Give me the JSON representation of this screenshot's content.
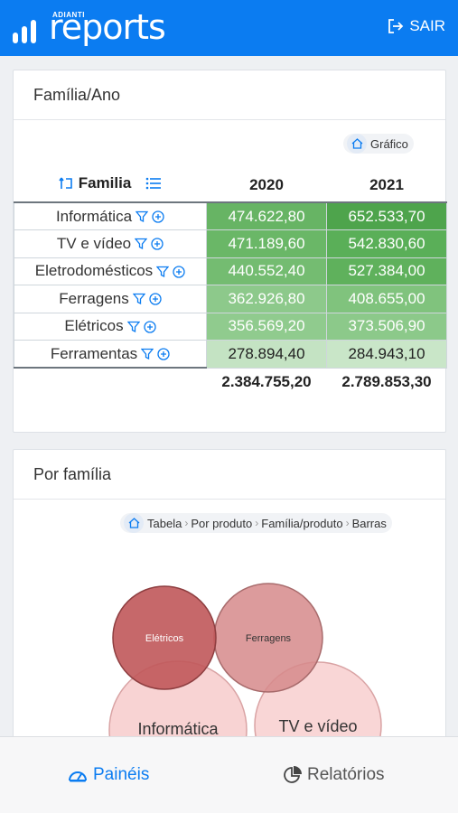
{
  "header": {
    "brand_small": "ADIANTI",
    "brand_big": "reports",
    "logout_label": "SAIR"
  },
  "card1": {
    "title": "Família/Ano",
    "breadcrumb": [
      "Gráfico"
    ],
    "row_header": "Familia",
    "columns": [
      "2020",
      "2021"
    ],
    "rows": [
      {
        "label": "Informática",
        "values": [
          "474.622,80",
          "652.533,70"
        ],
        "colors": [
          "#67b464",
          "#4ea44c"
        ]
      },
      {
        "label": "TV e vídeo",
        "values": [
          "471.189,60",
          "542.830,60"
        ],
        "colors": [
          "#6ab767",
          "#5aaf58"
        ]
      },
      {
        "label": "Eletrodomésticos",
        "values": [
          "440.552,40",
          "527.384,00"
        ],
        "colors": [
          "#74bc71",
          "#5fb15c"
        ]
      },
      {
        "label": "Ferragens",
        "values": [
          "362.926,80",
          "408.655,00"
        ],
        "colors": [
          "#8dc98b",
          "#80c37d"
        ]
      },
      {
        "label": "Elétricos",
        "values": [
          "356.569,20",
          "373.506,90"
        ],
        "colors": [
          "#90cb8e",
          "#8cc98a"
        ]
      },
      {
        "label": "Ferramentas",
        "values": [
          "278.894,40",
          "284.943,10"
        ],
        "colors": [
          "#c4e3c3",
          "#c9e6c8"
        ]
      }
    ],
    "totals": [
      "2.384.755,20",
      "2.789.853,30"
    ]
  },
  "card2": {
    "title": "Por família",
    "breadcrumb": [
      "Tabela",
      "Por produto",
      "Família/produto",
      "Barras"
    ],
    "bubbles": [
      {
        "label": "Elétricos",
        "color": "#c0585a"
      },
      {
        "label": "Ferragens",
        "color": "#d68a8b"
      },
      {
        "label": "Informática",
        "color": "#f8d3d3"
      },
      {
        "label": "TV e vídeo",
        "color": "#f9d6d6"
      }
    ]
  },
  "nav": {
    "dashboards": "Painéis",
    "reports": "Relatórios"
  },
  "colors": {
    "primary": "#0b7cf1"
  }
}
